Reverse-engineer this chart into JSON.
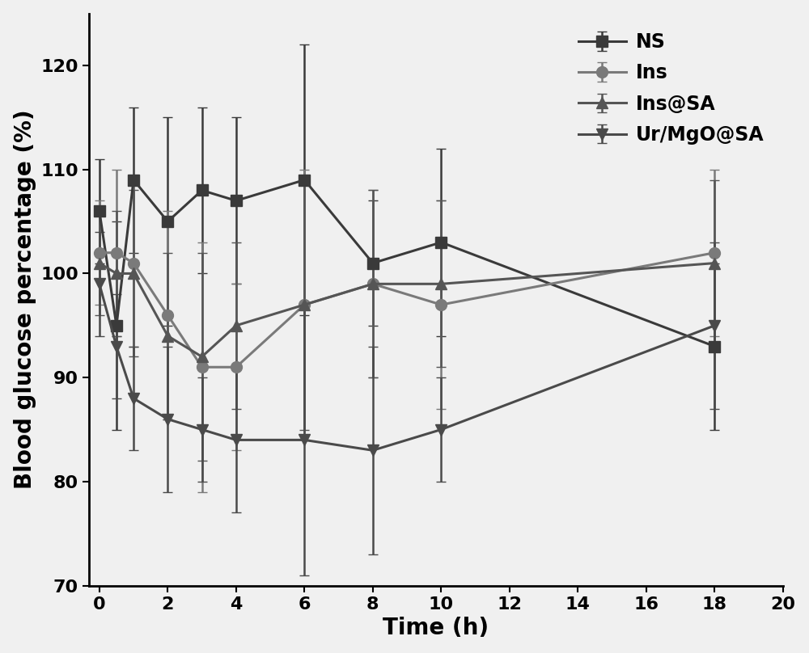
{
  "title": "",
  "xlabel": "Time (h)",
  "ylabel": "Blood glucose percentage (%)",
  "xlim": [
    -0.3,
    20
  ],
  "ylim": [
    70,
    125
  ],
  "xticks": [
    0,
    2,
    4,
    6,
    8,
    10,
    12,
    14,
    16,
    18,
    20
  ],
  "yticks": [
    70,
    80,
    90,
    100,
    110,
    120
  ],
  "series": [
    {
      "label": "NS",
      "color": "#3a3a3a",
      "marker": "s",
      "x": [
        0,
        0.5,
        1,
        2,
        3,
        4,
        6,
        8,
        10,
        18
      ],
      "y": [
        106,
        95,
        109,
        105,
        108,
        107,
        109,
        101,
        103,
        93
      ],
      "yerr": [
        5,
        10,
        7,
        10,
        8,
        8,
        13,
        6,
        9,
        8
      ]
    },
    {
      "label": "Ins",
      "color": "#7a7a7a",
      "marker": "o",
      "x": [
        0,
        0.5,
        1,
        2,
        3,
        4,
        6,
        8,
        10,
        18
      ],
      "y": [
        102,
        102,
        101,
        96,
        91,
        91,
        97,
        99,
        97,
        102
      ],
      "yerr": [
        5,
        8,
        8,
        10,
        12,
        8,
        13,
        9,
        10,
        8
      ]
    },
    {
      "label": "Ins@SA",
      "color": "#555555",
      "marker": "^",
      "x": [
        0,
        0.5,
        1,
        2,
        3,
        4,
        6,
        8,
        10,
        18
      ],
      "y": [
        101,
        100,
        100,
        94,
        92,
        95,
        97,
        99,
        99,
        101
      ],
      "yerr": [
        5,
        6,
        8,
        8,
        10,
        8,
        12,
        9,
        8,
        8
      ]
    },
    {
      "label": "Ur/MgO@SA",
      "color": "#4a4a4a",
      "marker": "v",
      "x": [
        0,
        0.5,
        1,
        2,
        3,
        4,
        6,
        8,
        10,
        18
      ],
      "y": [
        99,
        93,
        88,
        86,
        85,
        84,
        84,
        83,
        85,
        95
      ],
      "yerr": [
        5,
        5,
        5,
        7,
        5,
        7,
        13,
        10,
        5,
        8
      ]
    }
  ],
  "legend_loc": "upper right",
  "tick_fontsize": 16,
  "label_fontsize": 20,
  "legend_fontsize": 17,
  "linewidth": 2.2,
  "markersize": 10,
  "capsize": 4,
  "background_color": "#f0f0f0"
}
